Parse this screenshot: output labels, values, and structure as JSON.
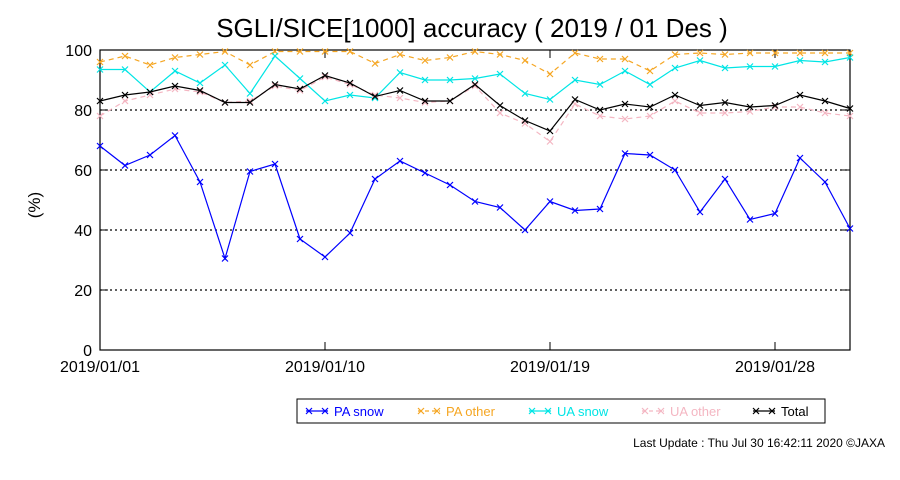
{
  "chart_data": {
    "type": "line",
    "title": "SGLI/SICE[1000] accuracy ( 2019 / 01 Des )",
    "ylabel": "(%)",
    "xlabel": "",
    "ylim": [
      0,
      100
    ],
    "yticks": [
      0,
      20,
      40,
      60,
      80,
      100
    ],
    "x_range": [
      "2019/01/01",
      "2019/01/31"
    ],
    "xticks": [
      "2019/01/01",
      "2019/01/10",
      "2019/01/19",
      "2019/01/28"
    ],
    "grid": "horizontal dotted at 20, 40, 60, 80",
    "legend_position": "bottom",
    "x": [
      "2019/01/01",
      "2019/01/02",
      "2019/01/03",
      "2019/01/04",
      "2019/01/05",
      "2019/01/06",
      "2019/01/07",
      "2019/01/08",
      "2019/01/09",
      "2019/01/10",
      "2019/01/11",
      "2019/01/12",
      "2019/01/13",
      "2019/01/14",
      "2019/01/15",
      "2019/01/16",
      "2019/01/17",
      "2019/01/18",
      "2019/01/19",
      "2019/01/20",
      "2019/01/21",
      "2019/01/22",
      "2019/01/23",
      "2019/01/24",
      "2019/01/25",
      "2019/01/26",
      "2019/01/27",
      "2019/01/28",
      "2019/01/29",
      "2019/01/30",
      "2019/01/31"
    ],
    "series": [
      {
        "name": "PA snow",
        "color": "#0000ff",
        "values": [
          68,
          61.5,
          65,
          71.5,
          56,
          30.5,
          59.5,
          62,
          37,
          31,
          39,
          57,
          63,
          59,
          55,
          49.5,
          47.5,
          40,
          49.5,
          46.5,
          47,
          65.5,
          65,
          60,
          46,
          57,
          43.5,
          45.5,
          64,
          56,
          40.5
        ]
      },
      {
        "name": "PA other",
        "color": "#f5a623",
        "values": [
          96,
          98,
          95,
          97.5,
          98.5,
          99.5,
          95,
          99.5,
          99.5,
          99.5,
          99.5,
          95.5,
          98.5,
          96.5,
          97.5,
          99.5,
          98.5,
          96.5,
          92,
          99,
          97,
          97,
          93,
          98.5,
          99,
          98.5,
          99,
          99,
          99,
          99,
          99
        ]
      },
      {
        "name": "UA snow",
        "color": "#00e5e5",
        "values": [
          93.5,
          93.5,
          86,
          93,
          89,
          95,
          85.5,
          98,
          90.5,
          83,
          85,
          84,
          92.5,
          90,
          90,
          90.5,
          92,
          85.5,
          83.5,
          90,
          88.5,
          93,
          88.5,
          94,
          96.5,
          94,
          94.5,
          94.5,
          96.5,
          96,
          97.5
        ]
      },
      {
        "name": "UA other",
        "color": "#f4b6c2",
        "values": [
          78,
          83,
          85,
          87,
          86,
          82.5,
          83,
          88,
          86.5,
          91,
          88.5,
          85,
          84,
          82.5,
          83,
          88,
          79,
          75.5,
          69.5,
          82,
          78,
          77,
          78,
          83,
          79,
          79,
          79.5,
          81,
          81,
          79,
          78
        ]
      },
      {
        "name": "Total",
        "color": "#000000",
        "values": [
          83,
          85,
          86,
          88,
          86.5,
          82.5,
          82.5,
          88.5,
          87,
          91.5,
          89,
          84.5,
          86.5,
          83,
          83,
          88.5,
          81.5,
          76.5,
          73,
          83.5,
          80,
          82,
          81,
          85,
          81.5,
          82.5,
          81,
          81.5,
          85,
          83,
          80.5
        ]
      }
    ]
  },
  "footer": {
    "last_update": "Last Update : Thu Jul 30 16:42:11 2020  ©JAXA"
  }
}
